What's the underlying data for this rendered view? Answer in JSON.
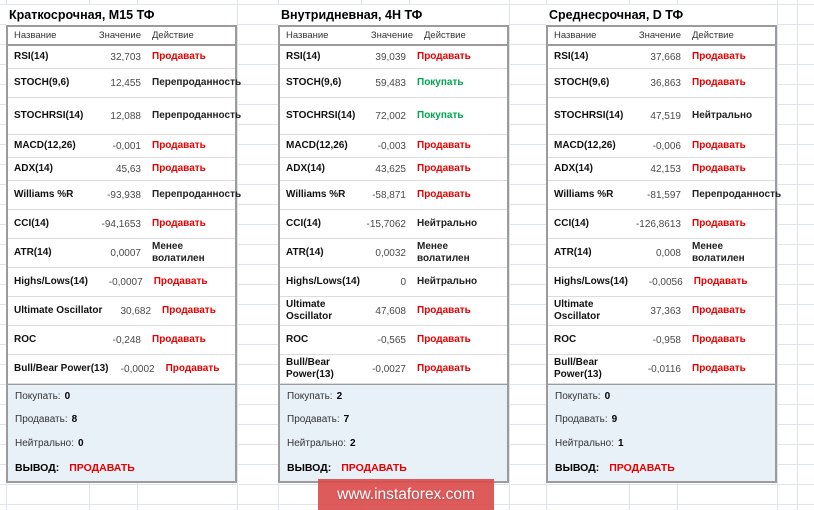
{
  "watermark": "www.instaforex.com",
  "colors": {
    "sell": "#e60000",
    "buy": "#00a550",
    "neutral_text": "#222222",
    "summary_bg": "#e9f1f8",
    "table_border": "#9b9b9b",
    "grid_line": "#dde4ed",
    "watermark_bg": "#db4d4d"
  },
  "columns": {
    "name": "Название",
    "value": "Значение",
    "action": "Действие"
  },
  "tables": [
    {
      "title": "Краткосрочная, M15 ТФ",
      "rows": [
        {
          "name": "RSI(14)",
          "value": "32,703",
          "action": "Продавать",
          "state": "sell"
        },
        {
          "name": "STOCH(9,6)",
          "value": "12,455",
          "action": "Перепроданность",
          "state": "neutral"
        },
        {
          "name": "STOCHRSI(14)",
          "value": "12,088",
          "action": "Перепроданность",
          "state": "neutral"
        },
        {
          "name": "MACD(12,26)",
          "value": "-0,001",
          "action": "Продавать",
          "state": "sell"
        },
        {
          "name": "ADX(14)",
          "value": "45,63",
          "action": "Продавать",
          "state": "sell"
        },
        {
          "name": "Williams %R",
          "value": "-93,938",
          "action": "Перепроданность",
          "state": "neutral"
        },
        {
          "name": "CCI(14)",
          "value": "-94,1653",
          "action": "Продавать",
          "state": "sell"
        },
        {
          "name": "ATR(14)",
          "value": "0,0007",
          "action": "Менее волатилен",
          "state": "neutral"
        },
        {
          "name": "Highs/Lows(14)",
          "value": "-0,0007",
          "action": "Продавать",
          "state": "sell"
        },
        {
          "name": "Ultimate Oscillator",
          "value": "30,682",
          "action": "Продавать",
          "state": "sell"
        },
        {
          "name": "ROC",
          "value": "-0,248",
          "action": "Продавать",
          "state": "sell"
        },
        {
          "name": "Bull/Bear Power(13)",
          "value": "-0,0002",
          "action": "Продавать",
          "state": "sell"
        }
      ],
      "summary": {
        "buy_label": "Покупать:",
        "buy": "0",
        "sell_label": "Продавать:",
        "sell": "8",
        "neutral_label": "Нейтрально:",
        "neutral": "0",
        "conclusion_label": "ВЫВОД:",
        "conclusion": "ПРОДАВАТЬ"
      }
    },
    {
      "title": "Внутридневная, 4H ТФ",
      "rows": [
        {
          "name": "RSI(14)",
          "value": "39,039",
          "action": "Продавать",
          "state": "sell"
        },
        {
          "name": "STOCH(9,6)",
          "value": "59,483",
          "action": "Покупать",
          "state": "buy"
        },
        {
          "name": "STOCHRSI(14)",
          "value": "72,002",
          "action": "Покупать",
          "state": "buy"
        },
        {
          "name": "MACD(12,26)",
          "value": "-0,003",
          "action": "Продавать",
          "state": "sell"
        },
        {
          "name": "ADX(14)",
          "value": "43,625",
          "action": "Продавать",
          "state": "sell"
        },
        {
          "name": "Williams %R",
          "value": "-58,871",
          "action": "Продавать",
          "state": "sell"
        },
        {
          "name": "CCI(14)",
          "value": "-15,7062",
          "action": "Нейтрально",
          "state": "neutral"
        },
        {
          "name": "ATR(14)",
          "value": "0,0032",
          "action": "Менее волатилен",
          "state": "neutral"
        },
        {
          "name": "Highs/Lows(14)",
          "value": "0",
          "action": "Нейтрально",
          "state": "neutral"
        },
        {
          "name": "Ultimate Oscillator",
          "value": "47,608",
          "action": "Продавать",
          "state": "sell"
        },
        {
          "name": "ROC",
          "value": "-0,565",
          "action": "Продавать",
          "state": "sell"
        },
        {
          "name": "Bull/Bear Power(13)",
          "value": "-0,0027",
          "action": "Продавать",
          "state": "sell"
        }
      ],
      "summary": {
        "buy_label": "Покупать:",
        "buy": "2",
        "sell_label": "Продавать:",
        "sell": "7",
        "neutral_label": "Нейтрально:",
        "neutral": "2",
        "conclusion_label": "ВЫВОД:",
        "conclusion": "ПРОДАВАТЬ"
      }
    },
    {
      "title": "Среднесрочная, D ТФ",
      "rows": [
        {
          "name": "RSI(14)",
          "value": "37,668",
          "action": "Продавать",
          "state": "sell"
        },
        {
          "name": "STOCH(9,6)",
          "value": "36,863",
          "action": "Продавать",
          "state": "sell"
        },
        {
          "name": "STOCHRSI(14)",
          "value": "47,519",
          "action": "Нейтрально",
          "state": "neutral"
        },
        {
          "name": "MACD(12,26)",
          "value": "-0,006",
          "action": "Продавать",
          "state": "sell"
        },
        {
          "name": "ADX(14)",
          "value": "42,153",
          "action": "Продавать",
          "state": "sell"
        },
        {
          "name": "Williams %R",
          "value": "-81,597",
          "action": "Перепроданность",
          "state": "neutral"
        },
        {
          "name": "CCI(14)",
          "value": "-126,8613",
          "action": "Продавать",
          "state": "sell"
        },
        {
          "name": "ATR(14)",
          "value": "0,008",
          "action": "Менее волатилен",
          "state": "neutral"
        },
        {
          "name": "Highs/Lows(14)",
          "value": "-0,0056",
          "action": "Продавать",
          "state": "sell"
        },
        {
          "name": "Ultimate Oscillator",
          "value": "37,363",
          "action": "Продавать",
          "state": "sell"
        },
        {
          "name": "ROC",
          "value": "-0,958",
          "action": "Продавать",
          "state": "sell"
        },
        {
          "name": "Bull/Bear Power(13)",
          "value": "-0,0116",
          "action": "Продавать",
          "state": "sell"
        }
      ],
      "summary": {
        "buy_label": "Покупать:",
        "buy": "0",
        "sell_label": "Продавать:",
        "sell": "9",
        "neutral_label": "Нейтрально:",
        "neutral": "1",
        "conclusion_label": "ВЫВОД:",
        "conclusion": "ПРОДАВАТЬ"
      }
    }
  ]
}
